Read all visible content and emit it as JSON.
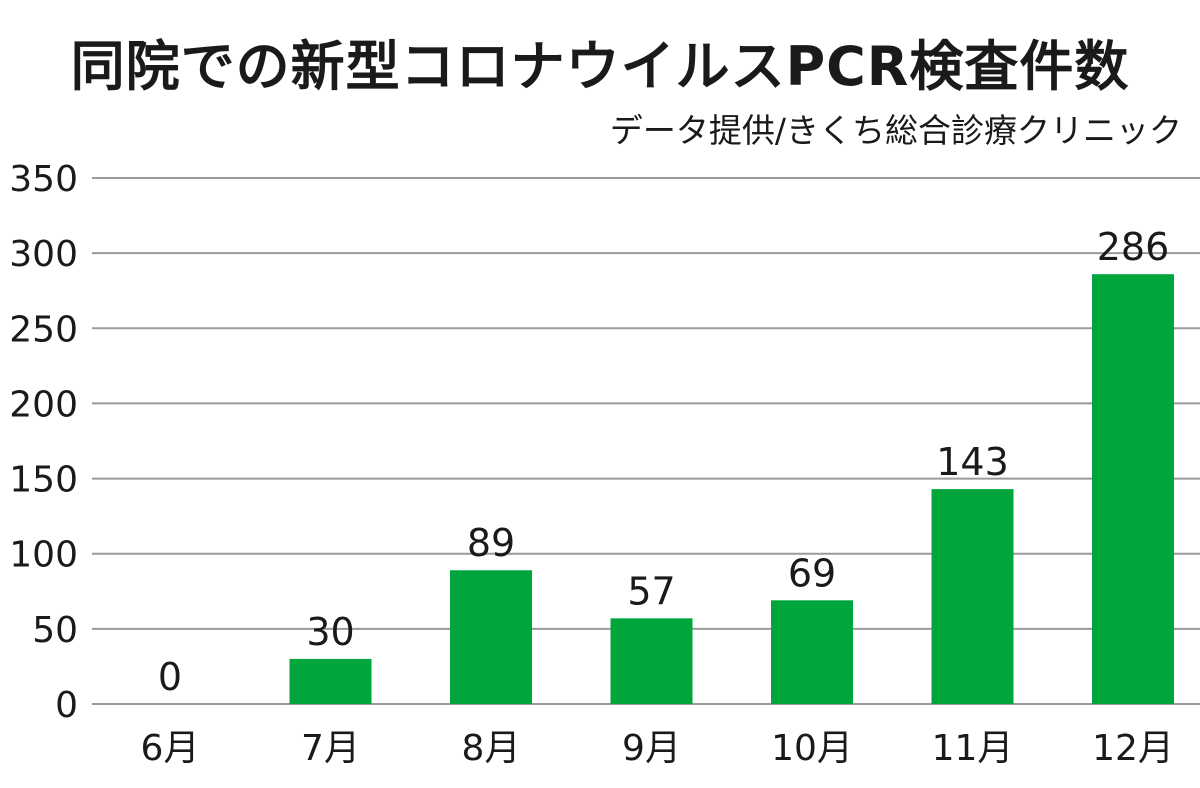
{
  "chart_data": {
    "type": "bar",
    "title": "同院での新型コロナウイルスPCR検査件数",
    "subtitle": "データ提供/きくち総合診療クリニック",
    "categories": [
      "6月",
      "7月",
      "8月",
      "9月",
      "10月",
      "11月",
      "12月"
    ],
    "values": [
      0,
      30,
      89,
      57,
      69,
      143,
      286
    ],
    "data_labels": [
      "0",
      "30",
      "89",
      "57",
      "69",
      "143",
      "286"
    ],
    "ylim": [
      0,
      350
    ],
    "yticks": [
      "0",
      "50",
      "100",
      "150",
      "200",
      "250",
      "300",
      "350"
    ],
    "grid": true,
    "legend": "none",
    "bar_color": "#00a63c",
    "grid_color": "#9a9a9a"
  }
}
